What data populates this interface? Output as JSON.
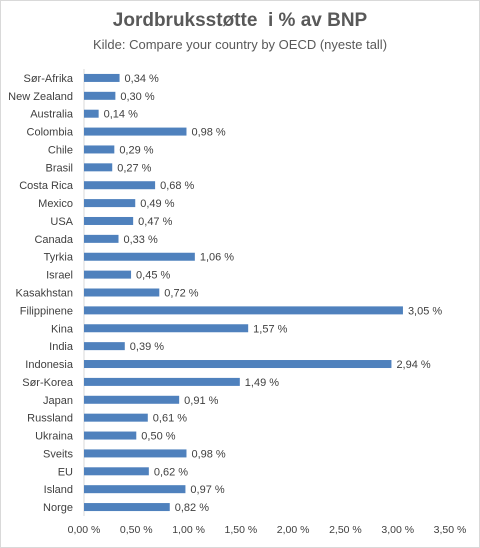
{
  "chart_data": {
    "type": "bar",
    "orientation": "horizontal",
    "title": "Jordbruksstøtte  i % av BNP",
    "subtitle": "Kilde: Compare your country by OECD (nyeste tall)",
    "categories": [
      "Sør-Afrika",
      "New Zealand",
      "Australia",
      "Colombia",
      "Chile",
      "Brasil",
      "Costa Rica",
      "Mexico",
      "USA",
      "Canada",
      "Tyrkia",
      "Israel",
      "Kasakhstan",
      "Filippinene",
      "Kina",
      "India",
      "Indonesia",
      "Sør-Korea",
      "Japan",
      "Russland",
      "Ukraina",
      "Sveits",
      "EU",
      "Island",
      "Norge"
    ],
    "values": [
      0.34,
      0.3,
      0.14,
      0.98,
      0.29,
      0.27,
      0.68,
      0.49,
      0.47,
      0.33,
      1.06,
      0.45,
      0.72,
      3.05,
      1.57,
      0.39,
      2.94,
      1.49,
      0.91,
      0.61,
      0.5,
      0.98,
      0.62,
      0.97,
      0.82
    ],
    "value_labels": [
      "0,34 %",
      "0,30 %",
      "0,14 %",
      "0,98 %",
      "0,29 %",
      "0,27 %",
      "0,68 %",
      "0,49 %",
      "0,47 %",
      "0,33 %",
      "1,06 %",
      "0,45 %",
      "0,72 %",
      "3,05 %",
      "1,57 %",
      "0,39 %",
      "2,94 %",
      "1,49 %",
      "0,91 %",
      "0,61 %",
      "0,50 %",
      "0,98 %",
      "0,62 %",
      "0,97 %",
      "0,82 %"
    ],
    "xlim": [
      0,
      3.5
    ],
    "x_ticks": [
      0,
      0.5,
      1,
      1.5,
      2,
      2.5,
      3,
      3.5
    ],
    "x_tick_labels": [
      "0,00 %",
      "0,50 %",
      "1,00 %",
      "1,50 %",
      "2,00 %",
      "2,50 %",
      "3,00 %",
      "3,50 %"
    ],
    "xlabel": "",
    "ylabel": "",
    "grid": false,
    "legend": "none",
    "bar_color": "#4f81bd"
  }
}
